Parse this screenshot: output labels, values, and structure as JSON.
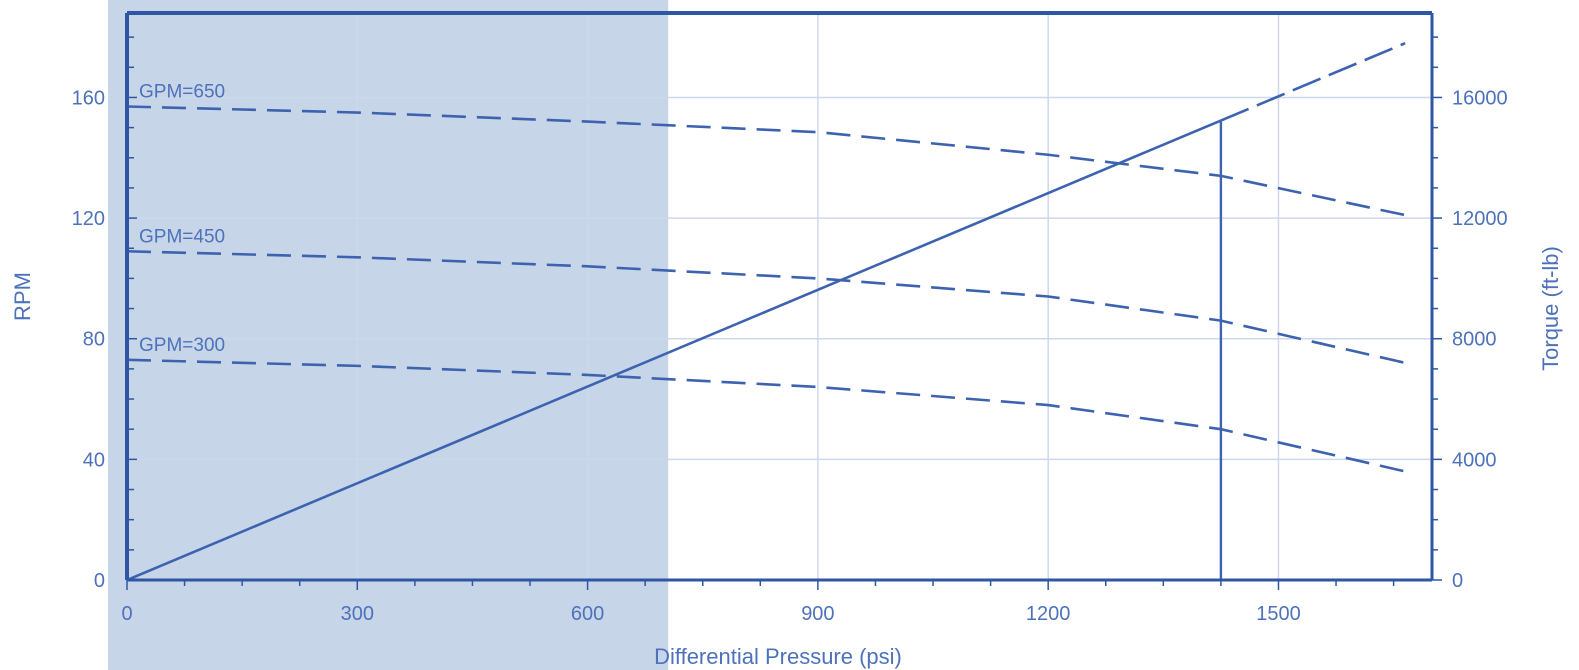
{
  "chart_data": {
    "type": "line",
    "xlabel": "Differential Pressure (psi)",
    "ylabel": "RPM",
    "y2label": "Torque (ft-lb)",
    "xlim": [
      0,
      1700
    ],
    "ylim": [
      0,
      188
    ],
    "y2lim": [
      0,
      18800
    ],
    "x_ticks": [
      0,
      300,
      600,
      900,
      1200,
      1500
    ],
    "y_ticks": [
      0,
      40,
      80,
      120,
      160
    ],
    "y2_ticks": [
      0,
      4000,
      8000,
      12000,
      16000
    ],
    "grid": true,
    "shaded_region": {
      "x": [
        0,
        705
      ]
    },
    "reference_line": {
      "x": 1425,
      "y2": [
        0,
        15200
      ]
    },
    "series": [
      {
        "name": "GPM=650",
        "axis": "left",
        "style": "dashed",
        "x": [
          0,
          300,
          600,
          900,
          1200,
          1425,
          1665
        ],
        "y": [
          157,
          155,
          152,
          148.5,
          141,
          134,
          121
        ]
      },
      {
        "name": "GPM=450",
        "axis": "left",
        "style": "dashed",
        "x": [
          0,
          300,
          600,
          900,
          1200,
          1425,
          1665
        ],
        "y": [
          109,
          107,
          104,
          100,
          94,
          86,
          72
        ]
      },
      {
        "name": "GPM=300",
        "axis": "left",
        "style": "dashed",
        "x": [
          0,
          300,
          600,
          900,
          1200,
          1425,
          1665
        ],
        "y": [
          73,
          71,
          68,
          64,
          58,
          50,
          36
        ]
      },
      {
        "axis": "right",
        "style": "solid-then-dashed",
        "solid_until": 1425,
        "x": [
          0,
          1665
        ],
        "y": [
          0,
          17800
        ]
      }
    ]
  },
  "colors": {
    "axis": "#2f56a5",
    "line": "#3d63b0",
    "grid": "#cdd8ec",
    "shade": "#c7d5e8",
    "text": "#4d72bb"
  }
}
